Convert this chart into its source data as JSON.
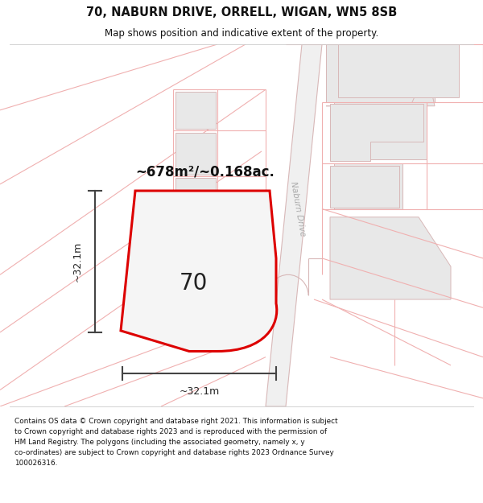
{
  "title_line1": "70, NABURN DRIVE, ORRELL, WIGAN, WN5 8SB",
  "title_line2": "Map shows position and indicative extent of the property.",
  "footer_text": "Contains OS data © Crown copyright and database right 2021. This information is subject\nto Crown copyright and database rights 2023 and is reproduced with the permission of\nHM Land Registry. The polygons (including the associated geometry, namely x, y\nco-ordinates) are subject to Crown copyright and database rights 2023 Ordnance Survey\n100026316.",
  "road_label": "Naburn Drive",
  "area_label": "~678m²/~0.168ac.",
  "plot_label": "70",
  "dim_h": "~32.1m",
  "dim_w": "~32.1m",
  "property_outline_color": "#dd0000",
  "dim_line_color": "#444444",
  "lc": "#f0b0b0",
  "block_fc": "#e8e8e8",
  "block_ec": "#d8b8b8",
  "road_fc": "#f0f0f0",
  "road_ec": "#d8b8b8",
  "map_bg": "#fafafa",
  "header_bg": "#ffffff",
  "footer_bg": "#ffffff"
}
